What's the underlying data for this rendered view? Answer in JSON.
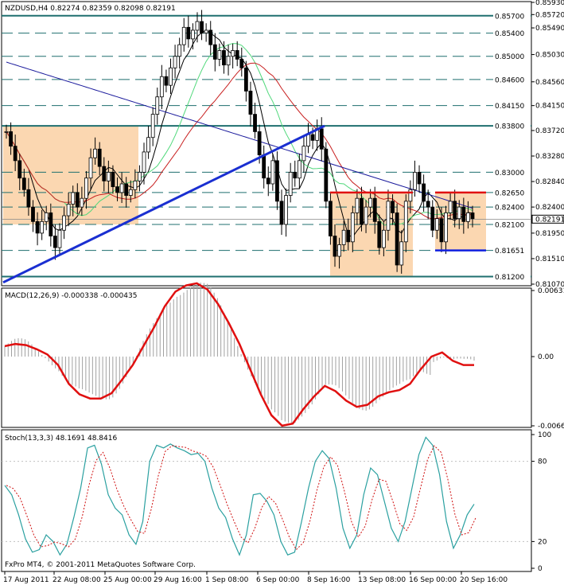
{
  "header": {
    "main_title": "NZDUSD,H4  0.82274 0.82359 0.82098 0.82191",
    "macd_title": "MACD(12,26,9) -0.000338 -0.000435",
    "stoch_title": "Stoch(13,3,3) 48.1691 48.8416",
    "watermark": "FxPro MT4, © 2001-2011 MetaQuotes Software Corp."
  },
  "colors": {
    "background": "#ffffff",
    "grid": "#1f6f6f",
    "zone_fill": "#fbd7b1",
    "candle_up": "#ffffff",
    "candle_down": "#000000",
    "ma_fast": "#000000",
    "ma_mid": "#4fd87a",
    "ma_slow": "#c82020",
    "ma_long": "#1a1a9c",
    "trendline": "#1a2fd1",
    "resistance": "#e01010",
    "support": "#1020e0",
    "macd_hist": "#a0a0a0",
    "macd_signal": "#e01010",
    "stoch_main": "#2aa0a0",
    "stoch_signal": "#d01010"
  },
  "chart_data": [
    {
      "type": "candlestick",
      "symbol": "NZDUSD",
      "timeframe": "H4",
      "ohlc_current": {
        "open": 0.82274,
        "high": 0.82359,
        "low": 0.82098,
        "close": 0.82191
      },
      "current_price_label": "0.82191",
      "ylim": [
        0.8107,
        0.8593
      ],
      "price_ticks": [
        "0.85930",
        "0.85720",
        "0.85490",
        "0.85030",
        "0.84560",
        "0.84150",
        "0.83720",
        "0.83280",
        "0.82840",
        "0.82400",
        "0.81950",
        "0.81510",
        "0.81070"
      ],
      "level_labels": [
        "0.85700",
        "0.85400",
        "0.85000",
        "0.84600",
        "0.84150",
        "0.83800",
        "0.83000",
        "0.82650",
        "0.82400",
        "0.82100",
        "0.81651",
        "0.81200"
      ],
      "x_labels": [
        "17 Aug 2011",
        "22 Aug 08:00",
        "25 Aug 00:00",
        "29 Aug 16:00",
        "1 Sep 08:00",
        "6 Sep 00:00",
        "8 Sep 16:00",
        "13 Sep 08:00",
        "16 Sep 00:00",
        "20 Sep 16:00"
      ],
      "closes": [
        0.837,
        0.8345,
        0.832,
        0.829,
        0.827,
        0.824,
        0.8215,
        0.8195,
        0.8215,
        0.823,
        0.819,
        0.817,
        0.82,
        0.8225,
        0.8245,
        0.8265,
        0.824,
        0.8255,
        0.829,
        0.8325,
        0.834,
        0.831,
        0.8285,
        0.83,
        0.8275,
        0.8265,
        0.828,
        0.826,
        0.827,
        0.8285,
        0.83,
        0.8335,
        0.836,
        0.84,
        0.843,
        0.8465,
        0.845,
        0.848,
        0.85,
        0.852,
        0.855,
        0.853,
        0.8545,
        0.856,
        0.854,
        0.8545,
        0.852,
        0.8495,
        0.851,
        0.8485,
        0.85,
        0.851,
        0.8495,
        0.848,
        0.844,
        0.84,
        0.837,
        0.833,
        0.829,
        0.828,
        0.832,
        0.825,
        0.821,
        0.826,
        0.83,
        0.829,
        0.832,
        0.8345,
        0.8365,
        0.8355,
        0.8375,
        0.834,
        0.825,
        0.819,
        0.8155,
        0.8175,
        0.82,
        0.818,
        0.823,
        0.8255,
        0.821,
        0.824,
        0.8255,
        0.8215,
        0.817,
        0.82,
        0.825,
        0.823,
        0.814,
        0.818,
        0.825,
        0.827,
        0.83,
        0.828,
        0.825,
        0.824,
        0.82,
        0.822,
        0.818,
        0.823,
        0.825,
        0.822,
        0.824,
        0.8215,
        0.823,
        0.822
      ],
      "resistance_level": 0.8265,
      "support_level": 0.81651,
      "zone_upper": 0.838,
      "zone_lower": 0.821
    },
    {
      "type": "line",
      "name": "MACD(12,26,9)",
      "values_current": {
        "main": -0.000338,
        "signal": -0.000435
      },
      "ylim": [
        -0.00661,
        0.00631
      ],
      "ticks": [
        "0.00631",
        "0.00",
        "-0.00661"
      ],
      "signal_curve": [
        0.001,
        0.0012,
        0.0011,
        0.0007,
        0.0002,
        -0.0008,
        -0.0026,
        -0.0036,
        -0.004,
        -0.004,
        -0.0035,
        -0.0022,
        -0.0008,
        0.001,
        0.0028,
        0.0048,
        0.0062,
        0.0068,
        0.007,
        0.0064,
        0.005,
        0.0032,
        0.0012,
        -0.0012,
        -0.0036,
        -0.0056,
        -0.0066,
        -0.0064,
        -0.005,
        -0.0038,
        -0.0028,
        -0.0033,
        -0.0042,
        -0.0048,
        -0.0046,
        -0.0038,
        -0.0034,
        -0.0032,
        -0.0026,
        -0.0012,
        0.0,
        0.0004,
        -0.0004,
        -0.0008,
        -0.0008
      ]
    },
    {
      "type": "line",
      "name": "Stoch(13,3,3)",
      "values_current": {
        "main": 48.1691,
        "signal": 48.8416
      },
      "ylim": [
        0,
        100
      ],
      "ticks": [
        "100",
        "80",
        "20",
        "0"
      ],
      "main_curve": [
        62,
        55,
        40,
        22,
        12,
        14,
        25,
        20,
        10,
        18,
        38,
        60,
        90,
        92,
        78,
        55,
        45,
        40,
        25,
        18,
        35,
        80,
        92,
        90,
        93,
        90,
        88,
        85,
        86,
        80,
        60,
        45,
        38,
        22,
        10,
        25,
        55,
        56,
        50,
        40,
        20,
        10,
        12,
        35,
        60,
        80,
        88,
        82,
        60,
        30,
        15,
        25,
        55,
        75,
        70,
        50,
        30,
        20,
        35,
        60,
        85,
        98,
        92,
        70,
        35,
        15,
        25,
        40,
        48
      ]
    }
  ]
}
